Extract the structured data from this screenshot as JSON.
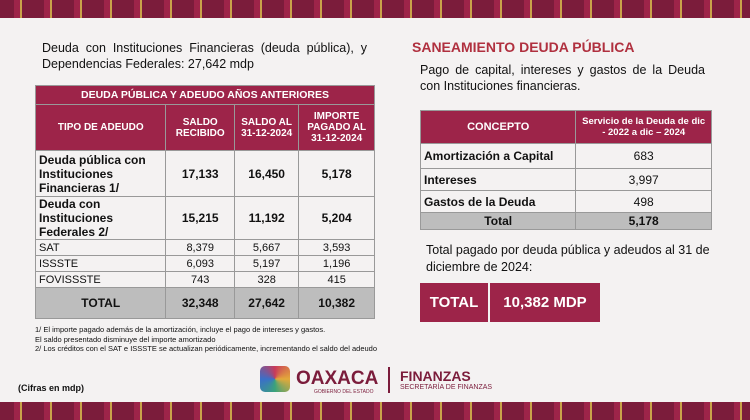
{
  "left": {
    "intro": "Deuda con Instituciones Financieras (deuda pública), y Dependencias Federales: 27,642 mdp",
    "table": {
      "title": "DEUDA PÚBLICA Y ADEUDO AÑOS ANTERIORES",
      "headers": [
        "TIPO DE ADEUDO",
        "SALDO RECIBIDO",
        "SALDO AL 31-12-2024",
        "IMPORTE PAGADO AL 31-12-2024"
      ],
      "rows": [
        [
          "Deuda pública con Instituciones Financieras 1/",
          "17,133",
          "16,450",
          "5,178"
        ],
        [
          "Deuda con Instituciones Federales 2/",
          "15,215",
          "11,192",
          "5,204"
        ],
        [
          "SAT",
          "8,379",
          "5,667",
          "3,593"
        ],
        [
          "ISSSTE",
          "6,093",
          "5,197",
          "1,196"
        ],
        [
          "FOVISSSTE",
          "743",
          "328",
          "415"
        ]
      ],
      "total": [
        "TOTAL",
        "32,348",
        "27,642",
        "10,382"
      ]
    },
    "notes": [
      "1/ El importe pagado además de la amortización, incluye el pago de intereses y gastos.",
      "El saldo presentado disminuye del importe amortizado",
      "2/ Los créditos con el SAT e ISSSTE se actualizan periódicamente, incrementando el saldo del adeudo"
    ],
    "units": "(Cifras en mdp)"
  },
  "right": {
    "title": "SANEAMIENTO DEUDA PÚBLICA",
    "intro": "Pago de capital,  intereses y gastos de la Deuda con Instituciones financieras.",
    "table": {
      "headers": [
        "CONCEPTO",
        "Servicio de la Deuda de dic - 2022 a dic – 2024"
      ],
      "rows": [
        [
          "Amortización a Capital",
          "683"
        ],
        [
          "Intereses",
          "3,997"
        ],
        [
          "Gastos de la Deuda",
          "498"
        ]
      ],
      "total": [
        "Total",
        "5,178"
      ]
    },
    "summary": "Total pagado por deuda pública y adeudos al 31 de diciembre de 2024:",
    "total_box": {
      "label": "TOTAL",
      "value": "10,382 MDP"
    }
  },
  "footer": {
    "brand": "OAXACA",
    "brand_sub": "GOBIERNO DEL ESTADO",
    "dept": "FINANZAS",
    "dept_sub": "SECRETARÍA DE FINANZAS"
  }
}
